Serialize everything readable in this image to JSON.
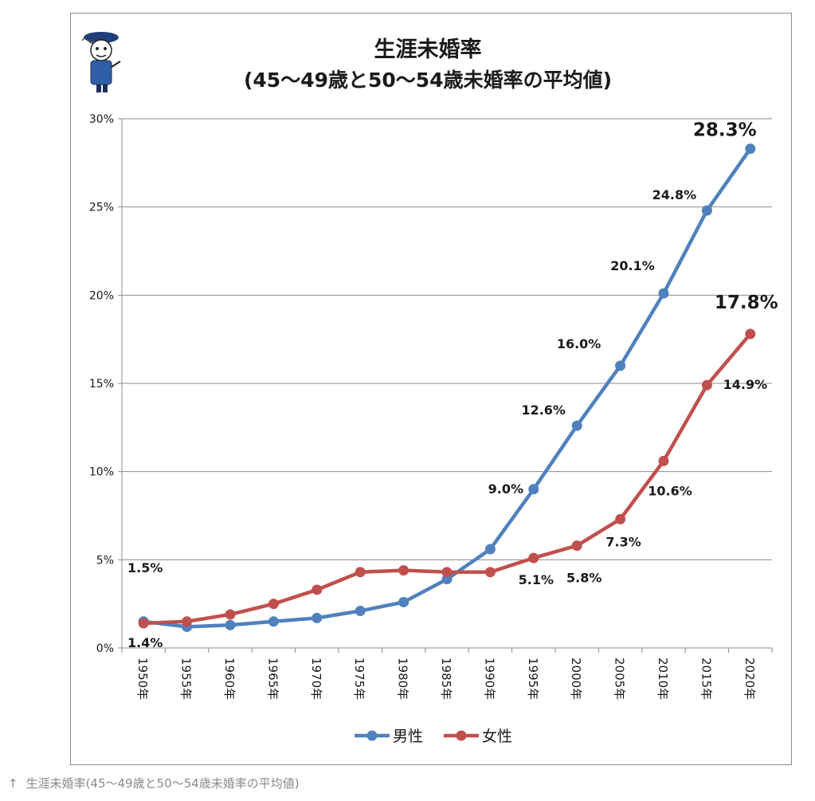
{
  "caption": {
    "arrow": "↑",
    "text": "生涯未婚率(45〜49歳と50〜54歳未婚率の平均値)"
  },
  "chart_data": {
    "type": "line",
    "title": "生涯未婚率",
    "subtitle": "(45〜49歳と50〜54歳未婚率の平均値)",
    "xlabel": "",
    "ylabel": "",
    "categories": [
      "1950年",
      "1955年",
      "1960年",
      "1965年",
      "1970年",
      "1975年",
      "1980年",
      "1985年",
      "1990年",
      "1995年",
      "2000年",
      "2005年",
      "2010年",
      "2015年",
      "2020年"
    ],
    "ylim": [
      0,
      30
    ],
    "yticks": [
      0,
      5,
      10,
      15,
      20,
      25,
      30
    ],
    "ytick_labels": [
      "0%",
      "5%",
      "10%",
      "15%",
      "20%",
      "25%",
      "30%"
    ],
    "grid": true,
    "legend_position": "bottom",
    "series": [
      {
        "name": "男性",
        "color": "#4f81bd",
        "values": [
          1.5,
          1.2,
          1.3,
          1.5,
          1.7,
          2.1,
          2.6,
          3.9,
          5.6,
          9.0,
          12.6,
          16.0,
          20.1,
          24.8,
          28.3
        ],
        "labels": [
          "1.5%",
          "",
          "",
          "",
          "",
          "",
          "",
          "",
          "",
          "9.0%",
          "12.6%",
          "16.0%",
          "20.1%",
          "24.8%",
          "28.3%"
        ]
      },
      {
        "name": "女性",
        "color": "#c0504d",
        "values": [
          1.4,
          1.5,
          1.9,
          2.5,
          3.3,
          4.3,
          4.4,
          4.3,
          4.3,
          5.1,
          5.8,
          7.3,
          10.6,
          14.9,
          17.8
        ],
        "labels": [
          "1.4%",
          "",
          "",
          "",
          "",
          "",
          "",
          "",
          "",
          "5.1%",
          "5.8%",
          "7.3%",
          "10.6%",
          "14.9%",
          "17.8%"
        ]
      }
    ]
  }
}
